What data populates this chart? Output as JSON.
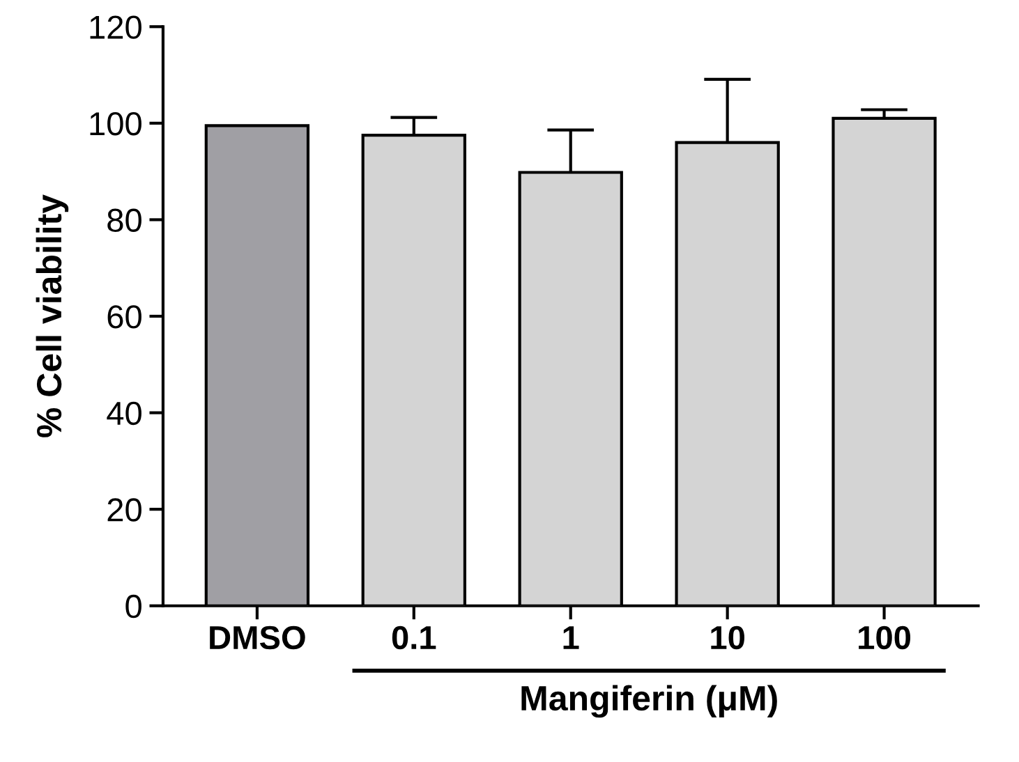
{
  "chart_data": {
    "type": "bar",
    "ylabel": "% Cell viability",
    "xlabel": "Mangiferin (μM)",
    "categories": [
      "DMSO",
      "0.1",
      "1",
      "10",
      "100"
    ],
    "values": [
      99.5,
      97.5,
      89.8,
      96.0,
      101.0
    ],
    "errors": [
      null,
      3.7,
      8.8,
      13.1,
      1.8
    ],
    "colors": [
      "#a09fa4",
      "#d4d4d4",
      "#d4d4d4",
      "#d4d4d4",
      "#d4d4d4"
    ],
    "ylim": [
      0,
      120
    ],
    "yticks": [
      0,
      20,
      40,
      60,
      80,
      100,
      120
    ],
    "grid": false,
    "legend": false
  }
}
